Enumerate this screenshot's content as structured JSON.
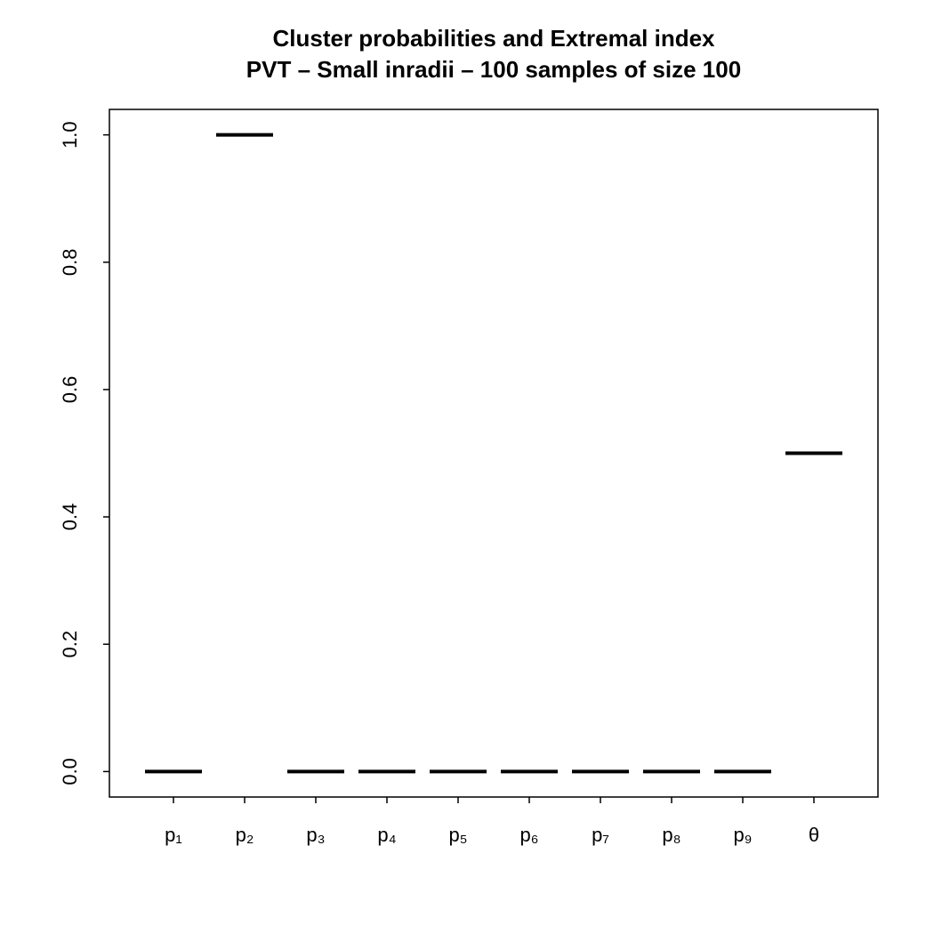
{
  "chart_data": {
    "type": "box",
    "title": "Cluster probabilities and Extremal index",
    "subtitle": "PVT – Small inradii – 100 samples of size 100",
    "categories": [
      "p₁",
      "p₂",
      "p₃",
      "p₄",
      "p₅",
      "p₆",
      "p₇",
      "p₈",
      "p₉",
      "θ"
    ],
    "values": [
      0,
      1,
      0,
      0,
      0,
      0,
      0,
      0,
      0,
      0.5
    ],
    "color": "#000000",
    "ylim": [
      -0.04,
      1.04
    ],
    "yticks": [
      {
        "value": 0,
        "label": "0.0"
      },
      0.2,
      0.4,
      0.6,
      0.8,
      {
        "value": 1,
        "label": "1.0"
      }
    ]
  }
}
